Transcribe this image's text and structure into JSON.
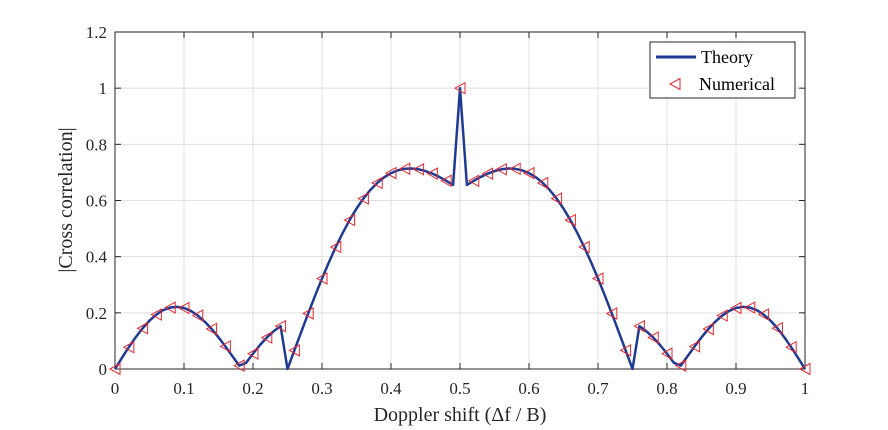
{
  "chart_data": {
    "type": "line",
    "title": "",
    "xlabel": "Doppler shift (Δf / B)",
    "ylabel": "|Cross correlation|",
    "xlim": [
      0,
      1
    ],
    "ylim": [
      0,
      1.2
    ],
    "xticks": [
      "0",
      "0.1",
      "0.2",
      "0.3",
      "0.4",
      "0.5",
      "0.6",
      "0.7",
      "0.8",
      "0.9",
      "1"
    ],
    "yticks": [
      "0",
      "0.2",
      "0.4",
      "0.6",
      "0.8",
      "1",
      "1.2"
    ],
    "grid": true,
    "legend_position": "top-right",
    "legend": [
      "Theory",
      "Numerical"
    ],
    "series": [
      {
        "name": "Theory",
        "style": "line",
        "color": "#1f3a93",
        "x": [
          0,
          0.01,
          0.02,
          0.03,
          0.04,
          0.05,
          0.06,
          0.07,
          0.08,
          0.09,
          0.1,
          0.11,
          0.12,
          0.13,
          0.14,
          0.15,
          0.16,
          0.17,
          0.18,
          0.19,
          0.2,
          0.21,
          0.22,
          0.23,
          0.24,
          0.25,
          0.26,
          0.27,
          0.28,
          0.29,
          0.3,
          0.31,
          0.32,
          0.33,
          0.34,
          0.35,
          0.36,
          0.37,
          0.38,
          0.39,
          0.4,
          0.41,
          0.42,
          0.43,
          0.44,
          0.45,
          0.46,
          0.47,
          0.48,
          0.49,
          0.5,
          0.51,
          0.52,
          0.53,
          0.54,
          0.55,
          0.56,
          0.57,
          0.58,
          0.59,
          0.6,
          0.61,
          0.62,
          0.63,
          0.64,
          0.65,
          0.66,
          0.67,
          0.68,
          0.69,
          0.7,
          0.71,
          0.72,
          0.73,
          0.74,
          0.75,
          0.76,
          0.77,
          0.78,
          0.79,
          0.8,
          0.81,
          0.82,
          0.83,
          0.84,
          0.85,
          0.86,
          0.87,
          0.88,
          0.89,
          0.9,
          0.91,
          0.92,
          0.93,
          0.94,
          0.95,
          0.96,
          0.97,
          0.98,
          0.99,
          1
        ],
        "y": [
          0,
          0.0395,
          0.0776,
          0.1132,
          0.1451,
          0.1723,
          0.194,
          0.2097,
          0.2188,
          0.2214,
          0.2172,
          0.2067,
          0.1903,
          0.1686,
          0.1425,
          0.1127,
          0.0804,
          0.0464,
          0.012,
          0.022,
          0.0547,
          0.085,
          0.112,
          0.1347,
          0.1525,
          0,
          0.0664,
          0.1325,
          0.1977,
          0.2611,
          0.3221,
          0.3801,
          0.4344,
          0.4846,
          0.5303,
          0.5711,
          0.6068,
          0.6373,
          0.6625,
          0.6826,
          0.6975,
          0.7075,
          0.7129,
          0.714,
          0.7111,
          0.7049,
          0.6956,
          0.6839,
          0.6703,
          0.6553,
          1,
          0.6553,
          0.6703,
          0.6839,
          0.6956,
          0.7049,
          0.7111,
          0.714,
          0.7129,
          0.7075,
          0.6975,
          0.6826,
          0.6625,
          0.6373,
          0.6068,
          0.5711,
          0.5303,
          0.4846,
          0.4344,
          0.3801,
          0.3221,
          0.2611,
          0.1977,
          0.1325,
          0.0664,
          0,
          0.1525,
          0.1347,
          0.112,
          0.085,
          0.0547,
          0.022,
          0.012,
          0.0464,
          0.0804,
          0.1127,
          0.1425,
          0.1686,
          0.1903,
          0.2067,
          0.2172,
          0.2214,
          0.2188,
          0.2097,
          0.194,
          0.1723,
          0.1451,
          0.1132,
          0.0776,
          0.0395,
          0
        ]
      },
      {
        "name": "Numerical",
        "style": "marker",
        "marker": "triangle-left",
        "color": "#e8262e",
        "x": [
          0,
          0.02,
          0.04,
          0.06,
          0.08,
          0.1,
          0.12,
          0.14,
          0.16,
          0.18,
          0.2,
          0.22,
          0.24,
          0.26,
          0.28,
          0.3,
          0.32,
          0.34,
          0.36,
          0.38,
          0.4,
          0.42,
          0.44,
          0.46,
          0.48,
          0.5,
          0.52,
          0.54,
          0.56,
          0.58,
          0.6,
          0.62,
          0.64,
          0.66,
          0.68,
          0.7,
          0.72,
          0.74,
          0.76,
          0.78,
          0.8,
          0.82,
          0.84,
          0.86,
          0.88,
          0.9,
          0.92,
          0.94,
          0.96,
          0.98,
          1
        ],
        "y": [
          0,
          0.0776,
          0.1451,
          0.194,
          0.2188,
          0.2172,
          0.1903,
          0.1425,
          0.0804,
          0.012,
          0.0547,
          0.112,
          0.1525,
          0.0664,
          0.1977,
          0.3221,
          0.4344,
          0.5303,
          0.6068,
          0.6625,
          0.6975,
          0.7129,
          0.7111,
          0.6956,
          0.6703,
          1,
          0.6703,
          0.6956,
          0.7111,
          0.7129,
          0.6975,
          0.6625,
          0.6068,
          0.5303,
          0.4344,
          0.3221,
          0.1977,
          0.0664,
          0.1525,
          0.112,
          0.0547,
          0.012,
          0.0804,
          0.1425,
          0.1903,
          0.2172,
          0.2188,
          0.194,
          0.1451,
          0.0776,
          0
        ]
      }
    ]
  }
}
